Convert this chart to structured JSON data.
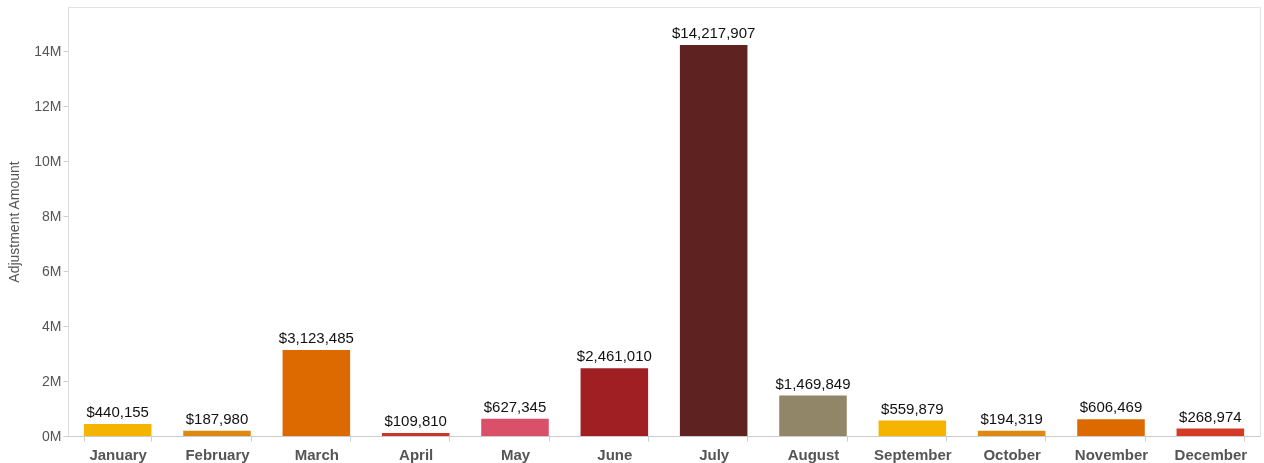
{
  "chart_data": {
    "type": "bar",
    "ylabel": "Adjustment Amount",
    "categories": [
      "January",
      "February",
      "March",
      "April",
      "May",
      "June",
      "July",
      "August",
      "September",
      "October",
      "November",
      "December"
    ],
    "values": [
      440155,
      187980,
      3123485,
      109810,
      627345,
      2461010,
      14217907,
      1469849,
      559879,
      194319,
      606469,
      268974
    ],
    "value_labels": [
      "$440,155",
      "$187,980",
      "$3,123,485",
      "$109,810",
      "$627,345",
      "$2,461,010",
      "$14,217,907",
      "$1,469,849",
      "$559,879",
      "$194,319",
      "$606,469",
      "$268,974"
    ],
    "colors": [
      "#f5b400",
      "#de8a12",
      "#dc6a00",
      "#c8382a",
      "#d95068",
      "#a01f22",
      "#5e2220",
      "#928669",
      "#f5b400",
      "#de8a12",
      "#dc6a00",
      "#d43a26"
    ],
    "ylim": [
      0,
      15600000
    ],
    "yticks": [
      {
        "value": 0,
        "label": "0M"
      },
      {
        "value": 2000000,
        "label": "2M"
      },
      {
        "value": 4000000,
        "label": "4M"
      },
      {
        "value": 6000000,
        "label": "6M"
      },
      {
        "value": 8000000,
        "label": "8M"
      },
      {
        "value": 10000000,
        "label": "10M"
      },
      {
        "value": 12000000,
        "label": "12M"
      },
      {
        "value": 14000000,
        "label": "14M"
      }
    ],
    "grid": false
  }
}
